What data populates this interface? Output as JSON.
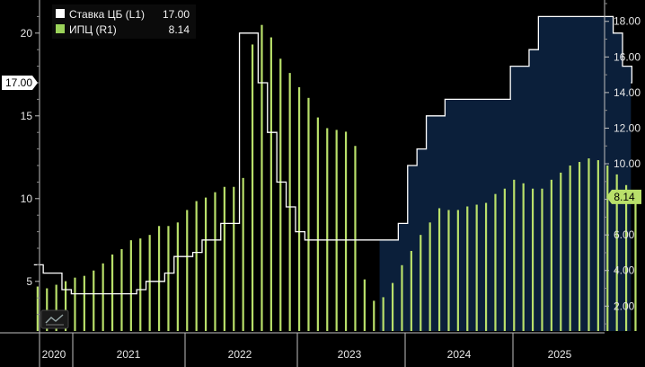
{
  "chart_data": {
    "type": "line+bar",
    "legend": [
      {
        "name": "Ставка ЦБ (L1)",
        "value": "17.00",
        "color": "#ffffff",
        "swatch": "#ffffff"
      },
      {
        "name": "ИПЦ (R1)",
        "value": "8.14",
        "color": "#d5ee8f",
        "swatch": "#9bd35a"
      }
    ],
    "left_axis": {
      "ticks": [
        "5",
        "10",
        "15",
        "20"
      ],
      "range": [
        2,
        22
      ],
      "last_value_label": "17.00",
      "last_value": 17.0
    },
    "right_axis": {
      "ticks": [
        "2.00",
        "4.00",
        "6.00",
        "8.00",
        "10.00",
        "12.00",
        "14.00",
        "16.00",
        "18.00"
      ],
      "range": [
        0.6,
        19.2
      ],
      "last_value_label": "8.14",
      "last_value": 8.14
    },
    "x_axis": {
      "years": [
        "2020",
        "2021",
        "2022",
        "2023",
        "2024",
        "2025"
      ],
      "start": "2020-04",
      "end": "2025-07"
    },
    "series_rate": {
      "name": "Ставка ЦБ",
      "points": [
        [
          "2020-04",
          6.0
        ],
        [
          "2020-05",
          5.5
        ],
        [
          "2020-07",
          4.5
        ],
        [
          "2020-08",
          4.25
        ],
        [
          "2021-03",
          4.5
        ],
        [
          "2021-04",
          5.0
        ],
        [
          "2021-06",
          5.5
        ],
        [
          "2021-07",
          6.5
        ],
        [
          "2021-09",
          6.75
        ],
        [
          "2021-10",
          7.5
        ],
        [
          "2021-12",
          8.5
        ],
        [
          "2022-02",
          20.0
        ],
        [
          "2022-04",
          17.0
        ],
        [
          "2022-05",
          14.0
        ],
        [
          "2022-06",
          11.0
        ],
        [
          "2022-07",
          9.5
        ],
        [
          "2022-08",
          8.0
        ],
        [
          "2022-09",
          7.5
        ],
        [
          "2023-07",
          8.5
        ],
        [
          "2023-08",
          12.0
        ],
        [
          "2023-09",
          13.0
        ],
        [
          "2023-10",
          15.0
        ],
        [
          "2023-12",
          16.0
        ],
        [
          "2024-07",
          18.0
        ],
        [
          "2024-09",
          19.0
        ],
        [
          "2024-10",
          21.0
        ],
        [
          "2025-06",
          20.0
        ],
        [
          "2025-07",
          18.0
        ],
        [
          "2025-08",
          17.0
        ]
      ]
    },
    "series_cpi": {
      "name": "ИПЦ",
      "start": "2020-04",
      "values": [
        3.1,
        3.0,
        3.2,
        3.4,
        3.6,
        3.7,
        4.0,
        4.4,
        4.9,
        5.2,
        5.7,
        5.8,
        6.0,
        6.5,
        6.5,
        6.7,
        7.4,
        7.9,
        8.1,
        8.4,
        8.7,
        8.7,
        9.2,
        16.7,
        17.8,
        17.1,
        15.9,
        15.1,
        14.3,
        13.7,
        12.6,
        12.0,
        11.9,
        11.8,
        11.0,
        3.5,
        2.3,
        2.5,
        3.3,
        4.3,
        5.1,
        6.0,
        6.7,
        7.5,
        7.4,
        7.4,
        7.6,
        7.7,
        7.8,
        8.3,
        8.6,
        9.1,
        8.9,
        8.6,
        8.6,
        9.1,
        9.5,
        9.9,
        10.1,
        10.3,
        10.2,
        9.9,
        9.4,
        8.8,
        8.14
      ]
    }
  }
}
